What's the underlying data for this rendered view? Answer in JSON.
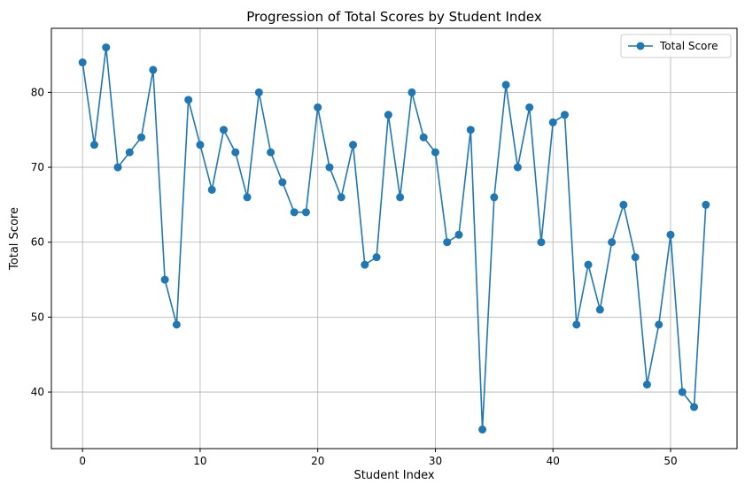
{
  "chart_data": {
    "type": "line",
    "title": "Progression of Total Scores by Student Index",
    "xlabel": "Student Index",
    "ylabel": "Total Score",
    "xlim": [
      -2.65,
      55.65
    ],
    "ylim": [
      32.45,
      88.55
    ],
    "xticks": [
      0,
      10,
      20,
      30,
      40,
      50
    ],
    "yticks": [
      40,
      50,
      60,
      70,
      80
    ],
    "grid": true,
    "legend_position": "top-right",
    "series": [
      {
        "name": "Total Score",
        "color": "#1f77b4",
        "marker": "circle",
        "x": [
          0,
          1,
          2,
          3,
          4,
          5,
          6,
          7,
          8,
          9,
          10,
          11,
          12,
          13,
          14,
          15,
          16,
          17,
          18,
          19,
          20,
          21,
          22,
          23,
          24,
          25,
          26,
          27,
          28,
          29,
          30,
          31,
          32,
          33,
          34,
          35,
          36,
          37,
          38,
          39,
          40,
          41,
          42,
          43,
          44,
          45,
          46,
          47,
          48,
          49,
          50,
          51,
          52,
          53
        ],
        "y": [
          84,
          73,
          86,
          70,
          72,
          74,
          83,
          55,
          49,
          79,
          73,
          67,
          75,
          72,
          66,
          80,
          72,
          68,
          64,
          64,
          78,
          70,
          66,
          73,
          57,
          58,
          77,
          66,
          80,
          74,
          72,
          60,
          61,
          75,
          35,
          66,
          81,
          70,
          78,
          60,
          76,
          77,
          49,
          57,
          51,
          60,
          65,
          58,
          41,
          49,
          61,
          40,
          38,
          65
        ]
      }
    ]
  }
}
